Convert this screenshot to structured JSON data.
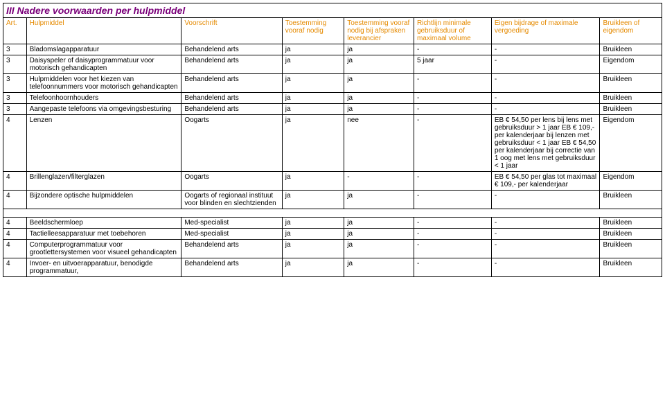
{
  "title": "III Nadere voorwaarden per hulpmiddel",
  "header_color": "#e58a00",
  "title_color": "#7a007a",
  "columns": [
    "Art.",
    "Hulpmiddel",
    "Voorschrift",
    "Toestemming vooraf nodig",
    "Toestemming vooraf nodig bij afspraken leverancier",
    "Richtlijn minimale gebruiksduur of maximaal volume",
    "Eigen bijdrage of maximale vergoeding",
    "Bruikleen of eigendom"
  ],
  "rows": [
    {
      "art": "3",
      "hulp": "Bladomslagapparatuur",
      "voor": "Behandelend arts",
      "t1": "ja",
      "t2": "ja",
      "richt": "-",
      "eigen": "-",
      "bruik": "Bruikleen"
    },
    {
      "art": "3",
      "hulp": "Daisyspeler of daisyprogrammatuur voor motorisch gehandicapten",
      "voor": "Behandelend arts",
      "t1": "ja",
      "t2": "ja",
      "richt": "5 jaar",
      "eigen": "-",
      "bruik": "Eigendom"
    },
    {
      "art": "3",
      "hulp": "Hulpmiddelen voor het kiezen van telefoonnummers voor motorisch gehandicapten",
      "voor": "Behandelend arts",
      "t1": "ja",
      "t2": "ja",
      "richt": "-",
      "eigen": "-",
      "bruik": "Bruikleen"
    },
    {
      "art": "3",
      "hulp": "Telefoonhoornhouders",
      "voor": "Behandelend arts",
      "t1": "ja",
      "t2": "ja",
      "richt": "-",
      "eigen": "-",
      "bruik": "Bruikleen"
    },
    {
      "art": "3",
      "hulp": "Aangepaste telefoons via omgevingsbesturing",
      "voor": "Behandelend arts",
      "t1": "ja",
      "t2": "ja",
      "richt": "-",
      "eigen": "-",
      "bruik": "Bruikleen"
    },
    {
      "art": "4",
      "hulp": "Lenzen",
      "voor": "Oogarts",
      "t1": "ja",
      "t2": "nee",
      "richt": "-",
      "eigen": "EB € 54,50 per lens bij lens met gebruiksduur > 1 jaar EB € 109,- per kalenderjaar bij lenzen met gebruiksduur < 1 jaar EB € 54,50 per kalenderjaar bij correctie van 1 oog met lens met gebruiksduur < 1 jaar",
      "bruik": "Eigendom"
    },
    {
      "art": "4",
      "hulp": "Brillenglazen/filterglazen",
      "voor": "Oogarts",
      "t1": "ja",
      "t2": "-",
      "richt": "-",
      "eigen": "EB € 54,50 per glas tot maximaal € 109,- per kalenderjaar",
      "bruik": "Eigendom"
    },
    {
      "art": "4",
      "hulp": "Bijzondere optische hulpmiddelen",
      "voor": "Oogarts of regionaal instituut voor blinden en slechtzienden",
      "t1": "ja",
      "t2": "ja",
      "richt": "-",
      "eigen": "-",
      "bruik": "Bruikleen"
    }
  ],
  "rows2": [
    {
      "art": "4",
      "hulp": "Beeldschermloep",
      "voor": "Med-specialist",
      "t1": "ja",
      "t2": "ja",
      "richt": "-",
      "eigen": "-",
      "bruik": "Bruikleen"
    },
    {
      "art": "4",
      "hulp": "Tactielleesapparatuur met toebehoren",
      "voor": "Med-specialist",
      "t1": "ja",
      "t2": "ja",
      "richt": "-",
      "eigen": "-",
      "bruik": "Bruikleen"
    },
    {
      "art": "4",
      "hulp": "Computerprogrammatuur voor grootlettersystemen voor visueel gehandicapten",
      "voor": "Behandelend arts",
      "t1": "ja",
      "t2": "ja",
      "richt": "-",
      "eigen": "-",
      "bruik": "Bruikleen"
    },
    {
      "art": "4",
      "hulp": "Invoer- en uitvoerapparatuur, benodigde programmatuur,",
      "voor": "Behandelend arts",
      "t1": "ja",
      "t2": "ja",
      "richt": "-",
      "eigen": "-",
      "bruik": "Bruikleen"
    }
  ]
}
